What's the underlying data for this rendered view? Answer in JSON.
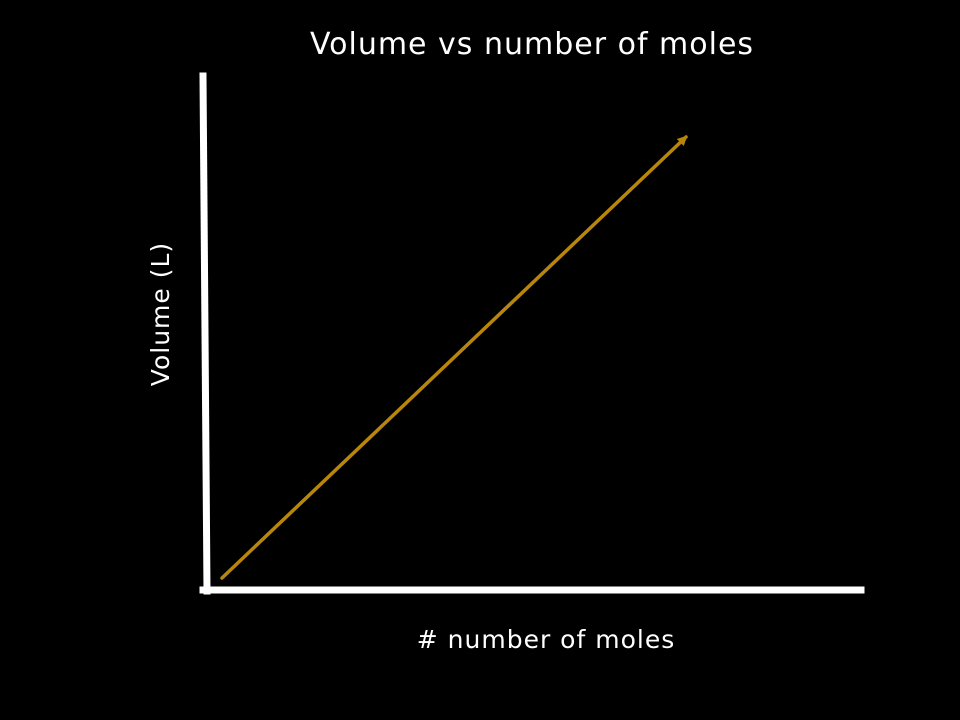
{
  "chart_data": {
    "type": "line",
    "title": "Volume vs number of moles",
    "xlabel": "# number of moles",
    "ylabel": "Volume (L)",
    "series": [
      {
        "x": [
          0,
          1
        ],
        "y": [
          0,
          1
        ],
        "style": "arrow"
      }
    ],
    "xlim": [
      0,
      1
    ],
    "ylim": [
      0,
      1
    ],
    "grid": false,
    "ticks": false,
    "colors": {
      "background": "#000000",
      "axes": "#ffffff",
      "line": "#b8860b",
      "text": "#ffffff"
    }
  }
}
